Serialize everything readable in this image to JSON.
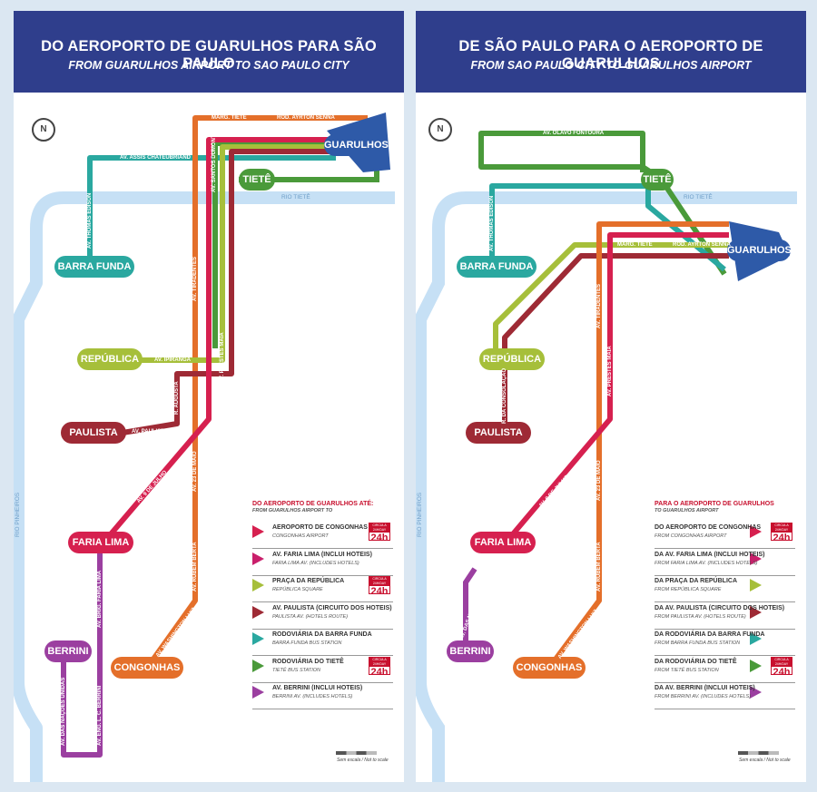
{
  "colors": {
    "header": "#2f3e8c",
    "navy": "#2e5aa8",
    "orange": "#e46f2a",
    "green": "#4a9a3a",
    "teal": "#2aa8a0",
    "red": "#d6204f",
    "darkred": "#9e2a35",
    "lime": "#a6bf3a",
    "purple": "#9b3fa0",
    "river": "#c6e0f5"
  },
  "left": {
    "title": "DO AEROPORTO DE  GUARULHOS PARA SÃO PAULO",
    "subtitle": "FROM GUARULHOS AIRPORT TO SAO PAULO CITY",
    "north": "N",
    "stations": {
      "guarulhos": "GUARULHOS",
      "tiete": "TIETÊ",
      "barra_funda": "BARRA FUNDA",
      "republica": "REPÚBLICA",
      "paulista": "PAULISTA",
      "faria_lima": "FARIA LIMA",
      "berrini": "BERRINI",
      "congonhas": "CONGONHAS"
    },
    "roads": {
      "marg_tiete": "MARG. TIETÊ",
      "rod_ayrton_senna": "ROD. AYRTON SENNA",
      "av_assis": "AV. ASSIS CHATEUBRIAND",
      "av_santos_dumont": "AV. SANTOS DUMONT",
      "av_thomas_edison": "AV. THOMAS EDISON",
      "av_tiradentes": "AV. TIRADENTES",
      "av_ipiranga": "AV. IPIRANGA",
      "av_prestes_maia": "AV. PRESTES MAIA",
      "r_augusta": "R. AUGUSTA",
      "av_paulista": "AV. PAULISTA",
      "av_9_julho": "AV. 9 DE JULHO",
      "av_23_maio": "AV. 23 DE MAIO",
      "av_brig_faria_lima": "AV. BRIG. FARIA LIMA",
      "av_rubem_berta": "AV. RUBEM BERTA",
      "av_washington_luiz": "AV. WASHINGTON LUIZ",
      "av_nacoes_unidas": "AV. DAS NAÇÕES UNIDAS",
      "av_berrini": "AV. ENG. L. C. BERRINI"
    },
    "rivers": {
      "tiete": "RIO TIETÊ",
      "pinheiros": "RIO PINHEIROS"
    },
    "legend": {
      "title": "DO AEROPORTO DE GUARULHOS ATÉ:",
      "subtitle": "FROM GUARULHOS AIRPORT TO",
      "items": [
        {
          "name": "AEROPORTO DE CONGONHAS",
          "sub": "CONGONHAS AIRPORT",
          "color": "#d6204f",
          "badge": true
        },
        {
          "name": "AV. FARIA LIMA (INCLUI HOTEIS)",
          "sub": "FARIA LIMA AV. (INCLUDES HOTELS)",
          "color": "#c91f6b",
          "badge": false
        },
        {
          "name": "PRAÇA DA REPÚBLICA",
          "sub": "REPÚBLICA SQUARE",
          "color": "#a6bf3a",
          "badge": true
        },
        {
          "name": "AV. PAULISTA (CIRCUITO DOS HOTEIS)",
          "sub": "PAULISTA AV. (HOTELS ROUTE)",
          "color": "#9e2a35",
          "badge": false
        },
        {
          "name": "RODOVIÁRIA DA BARRA FUNDA",
          "sub": "BARRA FUNDA BUS STATION",
          "color": "#2aa8a0",
          "badge": false
        },
        {
          "name": "RODOVIÁRIA DO TIETÊ",
          "sub": "TIETÊ BUS STATION",
          "color": "#4a9a3a",
          "badge": true
        },
        {
          "name": "AV. BERRINI (INCLUI HOTEIS)",
          "sub": "BERRINI AV. (INCLUDES HOTELS)",
          "color": "#9b3fa0",
          "badge": false
        }
      ]
    },
    "badge_small": "CIRCULA 24H/DAY",
    "badge_big": "24h",
    "scale": "Sem escala / Not to scale"
  },
  "right": {
    "title": "DE SÃO PAULO PARA O AEROPORTO DE GUARULHOS",
    "subtitle": "FROM SAO PAULO CITY  TO GUARULHOS AIRPORT",
    "north": "N",
    "stations": {
      "guarulhos": "GUARULHOS",
      "tiete": "TIETÊ",
      "barra_funda": "BARRA FUNDA",
      "republica": "REPÚBLICA",
      "paulista": "PAULISTA",
      "faria_lima": "FARIA LIMA",
      "berrini": "BERRINI",
      "congonhas": "CONGONHAS"
    },
    "roads": {
      "av_olavo": "AV. OLAVO FONTOURA",
      "av_assis": "AV. ASSIS CHATEUBRIAND",
      "av_thomas_edison": "AV. THOMAS EDISON",
      "marg_tiete": "MARG. TIETÊ",
      "rod_ayrton_senna": "ROD. AYRTON SENNA",
      "av_rio_branco": "AV. RIO BRANCO",
      "av_tiradentes": "AV. TIRADENTES",
      "av_prestes_maia": "AV. PRESTES MAIA",
      "r_consolacao": "R. DA CONSOLAÇÃO",
      "av_9_julho": "AV. 9 DE JULHO",
      "av_23_maio": "AV. 23 DE MAIO",
      "av_rubem_berta": "AV. RUBEM BERTA",
      "av_washington_luiz": "AV. WASHINGTON LUIZ",
      "av_nacoes_unidas": "AV. DAS NAÇÕES UNIDAS"
    },
    "rivers": {
      "tiete": "RIO TIETÊ",
      "pinheiros": "RIO PINHEIROS"
    },
    "legend": {
      "title": "PARA O AEROPORTO DE GUARULHOS",
      "subtitle": "TO GUARULHOS AIRPORT",
      "items": [
        {
          "name": "DO AEROPORTO DE CONGONHAS",
          "sub": "FROM CONGONHAS AIRPORT",
          "color": "#d6204f",
          "badge": true
        },
        {
          "name": "DA AV. FARIA LIMA (INCLUI HOTEIS)",
          "sub": "FROM FARIA LIMA AV. (INCLUDES HOTELS)",
          "color": "#c91f6b",
          "badge": false
        },
        {
          "name": "DA PRAÇA DA REPÚBLICA",
          "sub": "FROM REPÚBLICA SQUARE",
          "color": "#a6bf3a",
          "badge": false
        },
        {
          "name": "DA AV. PAULISTA (CIRCUITO DOS HOTEIS)",
          "sub": "FROM PAULISTA AV. (HOTELS ROUTE)",
          "color": "#9e2a35",
          "badge": false
        },
        {
          "name": "DA RODOVIÁRIA DA BARRA FUNDA",
          "sub": "FROM BARRA FUNDA BUS STATION",
          "color": "#2aa8a0",
          "badge": false
        },
        {
          "name": "DA RODOVIÁRIA DO TIETÊ",
          "sub": "FROM TIETÊ BUS STATION",
          "color": "#4a9a3a",
          "badge": true
        },
        {
          "name": "DA AV. BERRINI (INCLUI HOTEIS)",
          "sub": "FROM BERRINI AV. (INCLUDES HOTELS)",
          "color": "#9b3fa0",
          "badge": false
        }
      ]
    },
    "badge_small": "CIRCULA 24H/DAY",
    "badge_big": "24h",
    "scale": "Sem escala / Not to scale"
  }
}
